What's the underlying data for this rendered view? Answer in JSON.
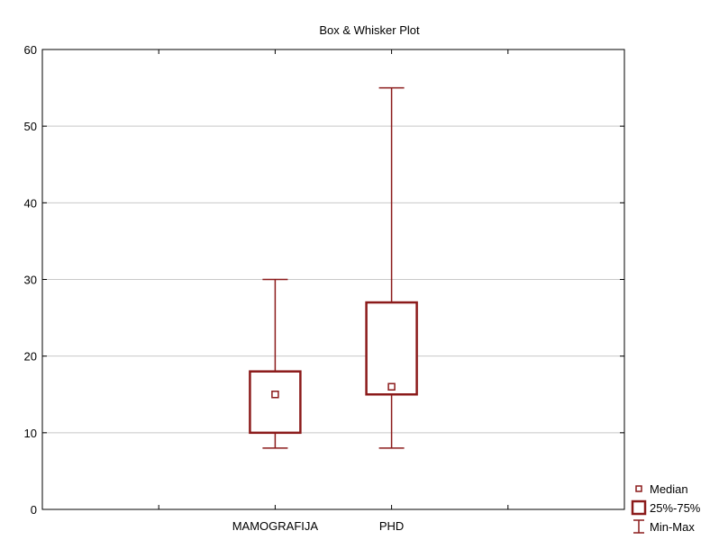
{
  "chart_data": {
    "type": "boxplot",
    "title": "Box & Whisker Plot",
    "xlabel": "",
    "ylabel": "",
    "ylim": [
      0,
      60
    ],
    "yticks": [
      0,
      10,
      20,
      30,
      40,
      50,
      60
    ],
    "grid": true,
    "legend_position": "bottom-right",
    "color": "#8b1a1a",
    "categories": [
      "MAMOGRAFIJA",
      "PHD"
    ],
    "boxes": [
      {
        "category": "MAMOGRAFIJA",
        "min": 8,
        "q1": 10,
        "median": 15,
        "q3": 18,
        "max": 30
      },
      {
        "category": "PHD",
        "min": 8,
        "q1": 15,
        "median": 16,
        "q3": 27,
        "max": 55
      }
    ],
    "legend": [
      {
        "symbol": "median",
        "label": "Median"
      },
      {
        "symbol": "box",
        "label": "25%-75%"
      },
      {
        "symbol": "whisker",
        "label": "Min-Max"
      }
    ]
  }
}
